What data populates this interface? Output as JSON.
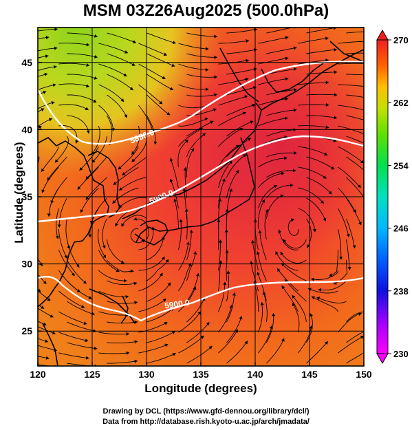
{
  "title": "MSM 03Z26Aug2025 (500.0hPa)",
  "map": {
    "xlabel": "Longitude (degrees)",
    "ylabel": "Latitude  (degrees)",
    "x_ticks": [
      120,
      125,
      130,
      135,
      140,
      145,
      150
    ],
    "y_ticks": [
      25,
      30,
      35,
      40,
      45
    ],
    "x_range": [
      120,
      150
    ],
    "y_range": [
      22.4,
      47.6
    ],
    "grid": true,
    "field": "temperature shading with wind streamlines",
    "contours": [
      {
        "label": "5880.0",
        "level": 5880
      },
      {
        "label": "5900.0",
        "level": 5900
      },
      {
        "label": "5900.0",
        "level": 5900
      },
      {
        "label": "5900.0",
        "level": 5900
      }
    ]
  },
  "colorbar": {
    "labels": [
      "270",
      "262",
      "254",
      "246",
      "238",
      "230"
    ],
    "min": 230,
    "max": 270,
    "colors": [
      "#ff00ff",
      "#8000ff",
      "#0000ff",
      "#0080ff",
      "#00c0ff",
      "#00e0c0",
      "#00e060",
      "#40e000",
      "#a0e000",
      "#e0e000",
      "#ffb000",
      "#ff7000",
      "#ff4000",
      "#f02020"
    ]
  },
  "credits": {
    "line1": "Drawing by DCL (https://www.gfd-dennou.org/library/dcl/)",
    "line2": "Data from http://database.rish.kyoto-u.ac.jp/arch/jmadata/"
  }
}
